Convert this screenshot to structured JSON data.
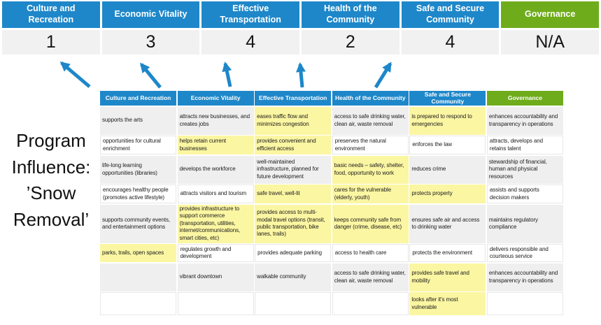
{
  "colors": {
    "blue": "#1E87C9",
    "green": "#6FAC1B",
    "yellow": "#FBF6A2",
    "gray-row": "#EFEFEF",
    "score-bg": "#F1F1F1",
    "cell-border": "#E7E7E7",
    "text-dark": "#1A1A1A"
  },
  "program_label": "Program Influence: ’Snow Removal’",
  "score_table": {
    "columns": [
      {
        "label": "Culture and Recreation",
        "score": "1",
        "theme": "blue"
      },
      {
        "label": "Economic Vitality",
        "score": "3",
        "theme": "blue"
      },
      {
        "label": "Effective Transportation",
        "score": "4",
        "theme": "blue"
      },
      {
        "label": "Health of the Community",
        "score": "2",
        "theme": "blue"
      },
      {
        "label": "Safe and Secure Community",
        "score": "4",
        "theme": "blue"
      },
      {
        "label": "Governance",
        "score": "N/A",
        "theme": "green"
      }
    ]
  },
  "matrix": {
    "headers": [
      {
        "label": "Culture and Recreation",
        "theme": "blue"
      },
      {
        "label": "Economic Vitality",
        "theme": "blue"
      },
      {
        "label": "Effective Transportation",
        "theme": "blue"
      },
      {
        "label": "Health of the Community",
        "theme": "blue"
      },
      {
        "label": "Safe and Secure Community",
        "theme": "blue"
      },
      {
        "label": "Governance",
        "theme": "green"
      }
    ],
    "rows": [
      [
        {
          "text": "supports the arts",
          "highlight": false
        },
        {
          "text": "attracts new businesses, and creates jobs",
          "highlight": false
        },
        {
          "text": "eases traffic flow and minimizes congestion",
          "highlight": true
        },
        {
          "text": "access to safe drinking water, clean air, waste removal",
          "highlight": false
        },
        {
          "text": "is prepared to respond to emergencies",
          "highlight": true
        },
        {
          "text": "enhances accountability and transparency in operations",
          "highlight": false
        }
      ],
      [
        {
          "text": "opportunities for cultural enrichment",
          "highlight": false
        },
        {
          "text": "helps retain current businesses",
          "highlight": true
        },
        {
          "text": "provides convenient and efficient access",
          "highlight": true
        },
        {
          "text": "preserves the natural environment",
          "highlight": false
        },
        {
          "text": "enforces the law",
          "highlight": false
        },
        {
          "text": "attracts, develops and retains talent",
          "highlight": false
        }
      ],
      [
        {
          "text": "life-long learning opportunities (libraries)",
          "highlight": false
        },
        {
          "text": "develops the workforce",
          "highlight": false
        },
        {
          "text": "well-maintained infrastructure, planned for future development",
          "highlight": false
        },
        {
          "text": "basic needs – safety, shelter, food, opportunity to work",
          "highlight": true
        },
        {
          "text": "reduces crime",
          "highlight": false
        },
        {
          "text": "stewardship of financial, human and physical resources",
          "highlight": false
        }
      ],
      [
        {
          "text": "encourages healthy people (promotes active lifestyle)",
          "highlight": false
        },
        {
          "text": "attracts visitors and tourism",
          "highlight": false
        },
        {
          "text": "safe travel, well-lit",
          "highlight": true
        },
        {
          "text": "cares for the vulnerable (elderly, youth)",
          "highlight": true
        },
        {
          "text": "protects property",
          "highlight": true
        },
        {
          "text": "assists and supports decision makers",
          "highlight": false
        }
      ],
      [
        {
          "text": "supports community events, and entertainment options",
          "highlight": false
        },
        {
          "text": "provides infrastructure to support commerce (transportation, utilities, internet/communications, smart cities, etc)",
          "highlight": true
        },
        {
          "text": "provides access to multi-modal travel options (transit, public transportation, bike lanes, trails)",
          "highlight": true
        },
        {
          "text": "keeps community safe from danger (crime, disease, etc)",
          "highlight": true
        },
        {
          "text": "ensures safe air and access to drinking water",
          "highlight": false
        },
        {
          "text": "maintains regulatory compliance",
          "highlight": false
        }
      ],
      [
        {
          "text": "parks, trails, open spaces",
          "highlight": true
        },
        {
          "text": "regulates growth and development",
          "highlight": false
        },
        {
          "text": "provides adequate parking",
          "highlight": false
        },
        {
          "text": "access to health care",
          "highlight": false
        },
        {
          "text": "protects the environment",
          "highlight": false
        },
        {
          "text": "delivers responsible and courteous service",
          "highlight": false
        }
      ],
      [
        {
          "text": "",
          "highlight": false
        },
        {
          "text": "vibrant downtown",
          "highlight": false
        },
        {
          "text": "walkable community",
          "highlight": false
        },
        {
          "text": "access to safe drinking water, clean air, waste removal",
          "highlight": false
        },
        {
          "text": "provides safe travel and mobility",
          "highlight": true
        },
        {
          "text": "enhances accountability and transparency in operations",
          "highlight": false
        }
      ],
      [
        {
          "text": "",
          "highlight": false
        },
        {
          "text": "",
          "highlight": false
        },
        {
          "text": "",
          "highlight": false
        },
        {
          "text": "",
          "highlight": false
        },
        {
          "text": "looks after it's most vulnerable",
          "highlight": true
        },
        {
          "text": "",
          "highlight": false
        }
      ]
    ]
  }
}
